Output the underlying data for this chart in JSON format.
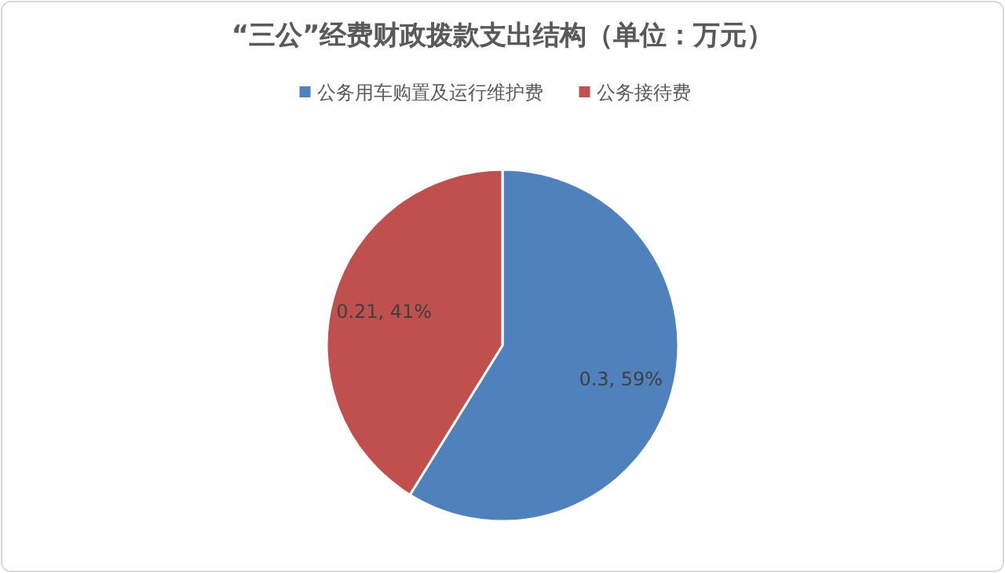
{
  "chart_data": {
    "type": "pie",
    "title": "“三公”经费财政拨款支出结构（单位：万元）",
    "categories": [
      "公务用车购置及运行维护费",
      "公务接待费"
    ],
    "values": [
      0.3,
      0.21
    ],
    "colors": [
      "#4f81bd",
      "#c0504d"
    ],
    "value_labels": [
      "0.3, 59%",
      "0.21, 41%"
    ],
    "legend": "top"
  }
}
